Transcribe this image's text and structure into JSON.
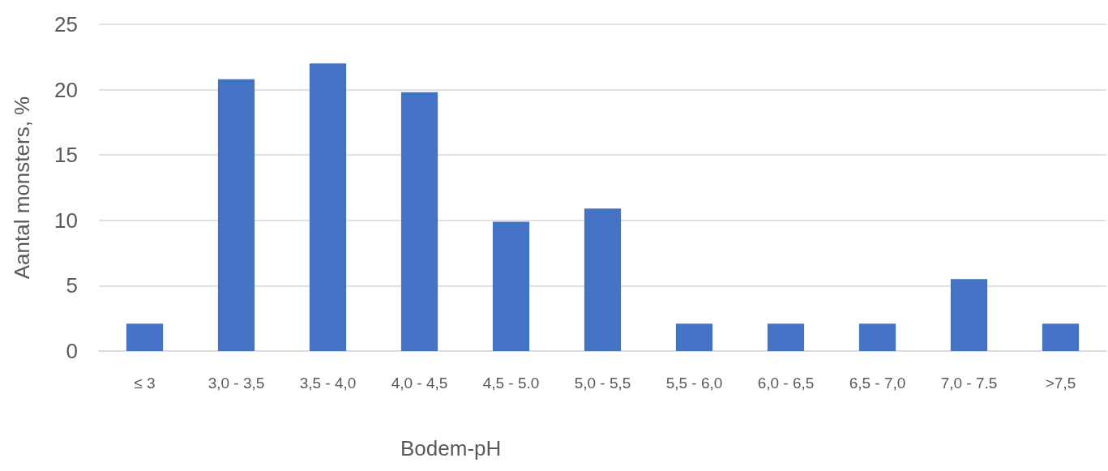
{
  "chart_data": {
    "type": "bar",
    "xlabel": "Bodem-pH",
    "ylabel": "Aantal monsters, %",
    "categories": [
      "≤ 3",
      "3,0 - 3,5",
      "3,5 - 4,0",
      "4,0 - 4,5",
      "4,5 - 5.0",
      "5,0 - 5,5",
      "5,5 - 6,0",
      "6,0 - 6,5",
      "6,5 - 7,0",
      "7,0 - 7.5",
      ">7,5"
    ],
    "values": [
      2.1,
      20.8,
      22.0,
      19.8,
      9.9,
      10.9,
      2.1,
      2.1,
      2.1,
      5.5,
      2.1
    ],
    "color": "#4472c4",
    "ylim": [
      0,
      25
    ],
    "yticks": [
      0,
      5,
      10,
      15,
      20,
      25
    ],
    "grid": "y"
  }
}
